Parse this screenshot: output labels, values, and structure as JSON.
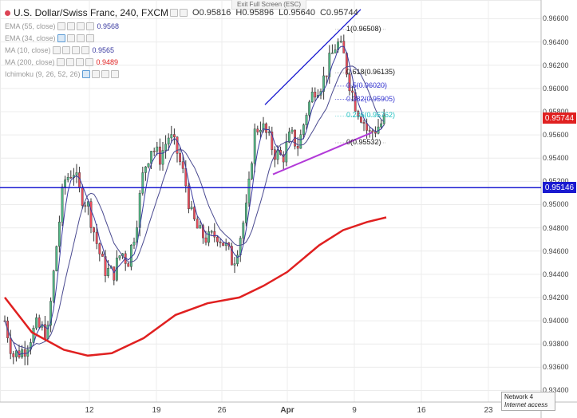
{
  "header": {
    "symbol_title": "U.S. Dollar/Swiss Franc, 240, FXCM",
    "open": "O0.95816",
    "high": "H0.95896",
    "low": "L0.95640",
    "close": "C0.95744"
  },
  "exit_full_screen": "Exit Full Screen (ESC)",
  "indicators": [
    {
      "label": "EMA (55, close)",
      "value": "0.9568",
      "color": "#3a3aa0"
    },
    {
      "label": "EMA (34, close)",
      "value": "",
      "color": "#3a3aa0"
    },
    {
      "label": "MA (10, close)",
      "value": "0.9565",
      "color": "#3a3aa0"
    },
    {
      "label": "MA (200, close)",
      "value": "0.9489",
      "color": "#e02020"
    },
    {
      "label": "Ichimoku (9, 26, 52, 26)",
      "value": "",
      "color": "#3a3aa0"
    }
  ],
  "price_axis": [
    "0.96600",
    "0.96400",
    "0.96200",
    "0.96000",
    "0.95800",
    "0.95600",
    "0.95400",
    "0.95200",
    "0.95000",
    "0.94800",
    "0.94600",
    "0.94400",
    "0.94200",
    "0.94000",
    "0.93800",
    "0.93600",
    "0.93400"
  ],
  "price_tags": {
    "last": {
      "text": "0.95744",
      "color": "#e02020"
    },
    "level": {
      "text": "0.95146",
      "color": "#1a1ad0"
    }
  },
  "time_axis": [
    "12",
    "19",
    "26",
    "Apr",
    "9",
    "16",
    "23"
  ],
  "fib_labels": {
    "f100": "1(0.96508)",
    "f618": "0.618(0.96135)",
    "f5": "0.5(0.96020)",
    "f382": "0.382(0.95905)",
    "f236": "0.236(0.95762)",
    "f0": "0(0.95532)"
  },
  "network": {
    "line1": "Network 4",
    "line2": "Internet access"
  },
  "colors": {
    "up": "#53b987",
    "down": "#eb4d5c",
    "ma200": "#e02020",
    "ema": "#3a3aa0",
    "trend": "#1a1ad0",
    "support": "#b23ad8"
  },
  "chart_data": {
    "type": "candlestick",
    "y_range": [
      0.933,
      0.9672
    ],
    "horizontal_level": 0.95146,
    "last_price": 0.95744
  }
}
